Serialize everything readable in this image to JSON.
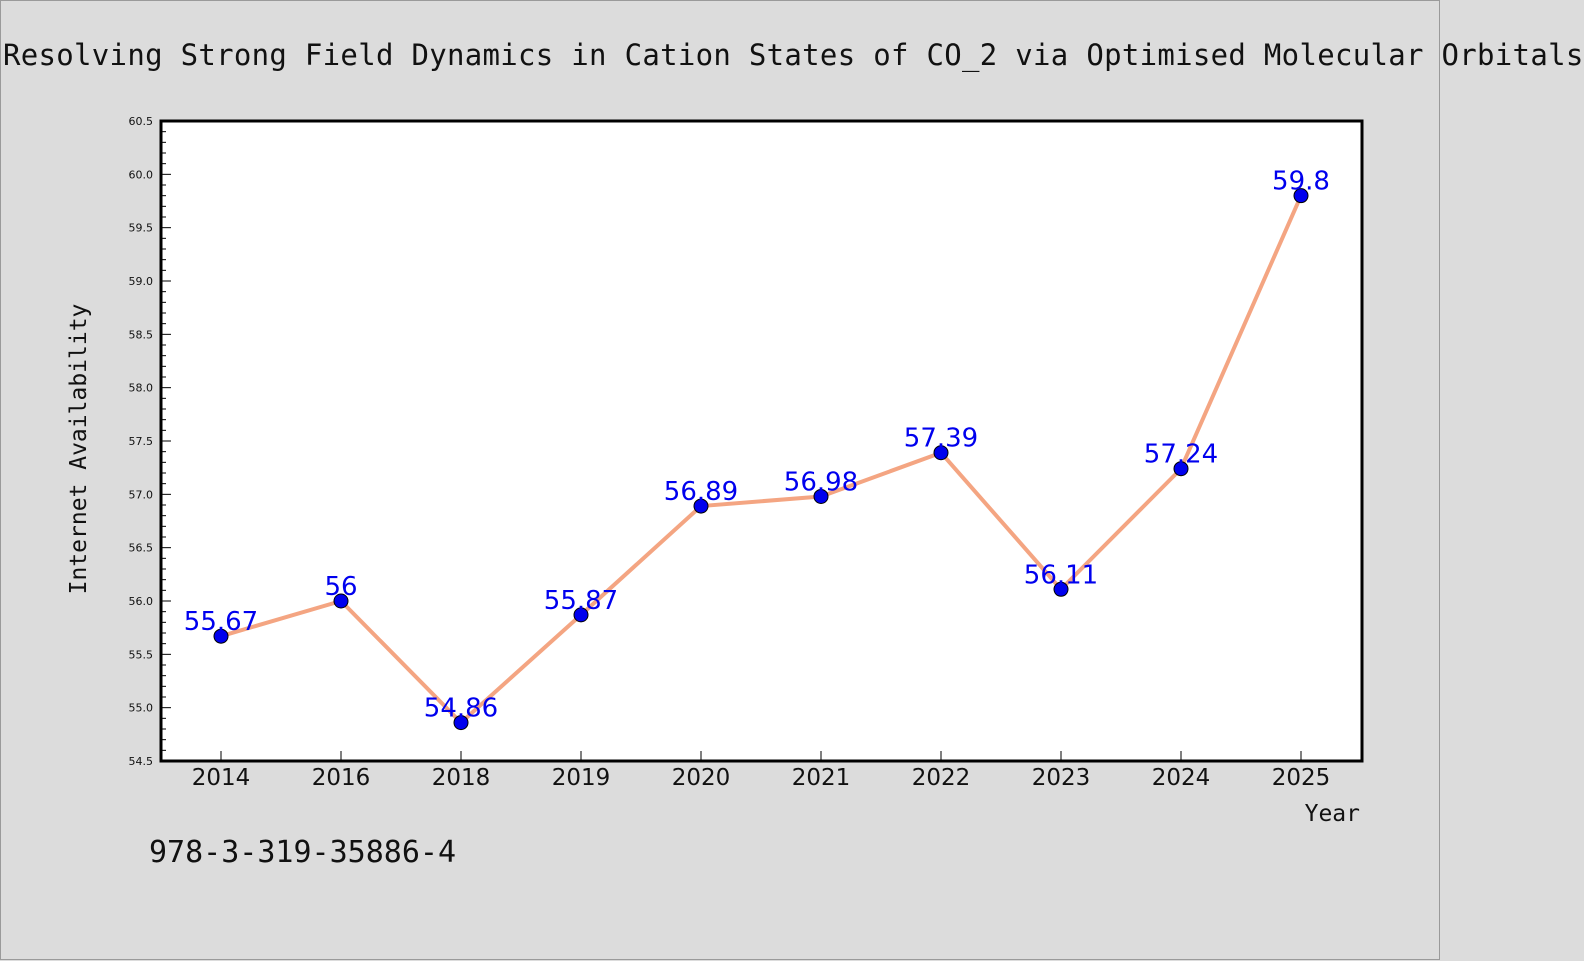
{
  "header": {
    "title": "Resolving Strong Field Dynamics in Cation States of CO_2 via Optimised Molecular Orbitals"
  },
  "footer": {
    "isbn": "978-3-319-35886-4"
  },
  "chart_data": {
    "type": "line",
    "title": "Resolving Strong Field Dynamics in Cation States of CO_2 via Optimised Molecular Orbitals",
    "xlabel": "Year",
    "ylabel": "Internet Availability",
    "categories": [
      "2014",
      "2016",
      "2018",
      "2019",
      "2020",
      "2021",
      "2022",
      "2023",
      "2024",
      "2025"
    ],
    "series": [
      {
        "values": [
          55.67,
          56,
          54.86,
          55.87,
          56.89,
          56.98,
          57.39,
          56.11,
          57.24,
          59.8
        ],
        "data_labels": [
          "55.67",
          "56",
          "54.86",
          "55.87",
          "56.89",
          "56.98",
          "57.39",
          "56.11",
          "57.24",
          "59.8"
        ],
        "line_color": "#f4a582",
        "marker_color": "#0000ee"
      }
    ],
    "ylim": [
      54.5,
      60.5
    ],
    "yticks": [
      54.5,
      55.0,
      55.5,
      56.0,
      56.5,
      57.0,
      57.5,
      58.0,
      58.5,
      59.0,
      59.5,
      60.0,
      60.5
    ],
    "ytick_labels": [
      "54.5",
      "55.0",
      "55.5",
      "56.0",
      "56.5",
      "57.0",
      "57.5",
      "58.0",
      "58.5",
      "59.0",
      "59.5",
      "60.0",
      "60.5"
    ],
    "grid": false,
    "legend": "none",
    "colors": {
      "background": "#dcdcdc",
      "plot_background": "#ffffff",
      "frame": "#000000"
    }
  }
}
